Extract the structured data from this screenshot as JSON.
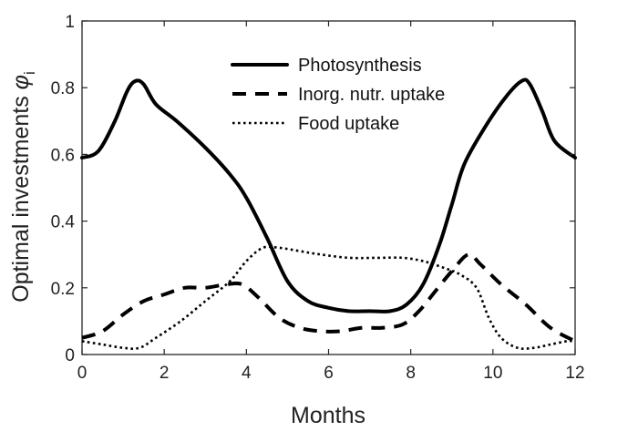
{
  "chart_data": {
    "type": "line",
    "xlabel": "Months",
    "ylabel_main": "Optimal investments ",
    "ylabel_symbol": "φ",
    "ylabel_subscript": "i",
    "xlim": [
      0,
      12
    ],
    "ylim": [
      0,
      1
    ],
    "xticks": [
      0,
      2,
      4,
      6,
      8,
      10,
      12
    ],
    "yticks": [
      0,
      0.2,
      0.4,
      0.6,
      0.8,
      1
    ],
    "ytick_labels": [
      "0",
      "0.2",
      "0.4",
      "0.6",
      "0.8",
      "1"
    ],
    "grid": false,
    "legend_position": "top-center",
    "series": [
      {
        "name": "Photosynthesis",
        "style": "solid",
        "color": "#000000",
        "x": [
          0,
          0.4,
          0.8,
          1.1,
          1.3,
          1.5,
          1.8,
          2.3,
          3.0,
          3.6,
          4.0,
          4.5,
          5.0,
          5.5,
          6.0,
          6.5,
          7.0,
          7.5,
          7.9,
          8.3,
          8.7,
          9.0,
          9.3,
          9.8,
          10.3,
          10.7,
          10.9,
          11.2,
          11.5,
          12.0
        ],
        "y": [
          0.59,
          0.61,
          0.7,
          0.79,
          0.82,
          0.81,
          0.75,
          0.7,
          0.62,
          0.54,
          0.47,
          0.35,
          0.22,
          0.16,
          0.14,
          0.13,
          0.13,
          0.13,
          0.15,
          0.21,
          0.33,
          0.45,
          0.57,
          0.68,
          0.77,
          0.82,
          0.81,
          0.73,
          0.64,
          0.59
        ]
      },
      {
        "name": "Inorg. nutr. uptake",
        "style": "dashed",
        "color": "#000000",
        "x": [
          0,
          0.5,
          1.0,
          1.5,
          2.0,
          2.5,
          3.0,
          3.5,
          3.9,
          4.3,
          4.8,
          5.3,
          5.8,
          6.3,
          6.8,
          7.3,
          7.8,
          8.2,
          8.6,
          9.0,
          9.4,
          9.7,
          10.2,
          10.8,
          11.4,
          12.0
        ],
        "y": [
          0.05,
          0.07,
          0.12,
          0.16,
          0.18,
          0.2,
          0.2,
          0.21,
          0.21,
          0.17,
          0.11,
          0.08,
          0.07,
          0.07,
          0.08,
          0.08,
          0.09,
          0.13,
          0.19,
          0.25,
          0.3,
          0.27,
          0.21,
          0.15,
          0.08,
          0.04
        ]
      },
      {
        "name": "Food uptake",
        "style": "dotted",
        "color": "#000000",
        "x": [
          0,
          0.5,
          1.0,
          1.4,
          1.8,
          2.4,
          3.0,
          3.6,
          4.0,
          4.4,
          4.8,
          5.3,
          5.8,
          6.5,
          7.2,
          7.8,
          8.3,
          8.8,
          9.2,
          9.6,
          9.9,
          10.2,
          10.6,
          11.0,
          11.4,
          11.8,
          12.0
        ],
        "y": [
          0.04,
          0.03,
          0.02,
          0.02,
          0.05,
          0.1,
          0.16,
          0.22,
          0.28,
          0.32,
          0.32,
          0.31,
          0.3,
          0.29,
          0.29,
          0.29,
          0.28,
          0.26,
          0.24,
          0.2,
          0.11,
          0.05,
          0.02,
          0.02,
          0.03,
          0.04,
          0.04
        ]
      }
    ]
  }
}
